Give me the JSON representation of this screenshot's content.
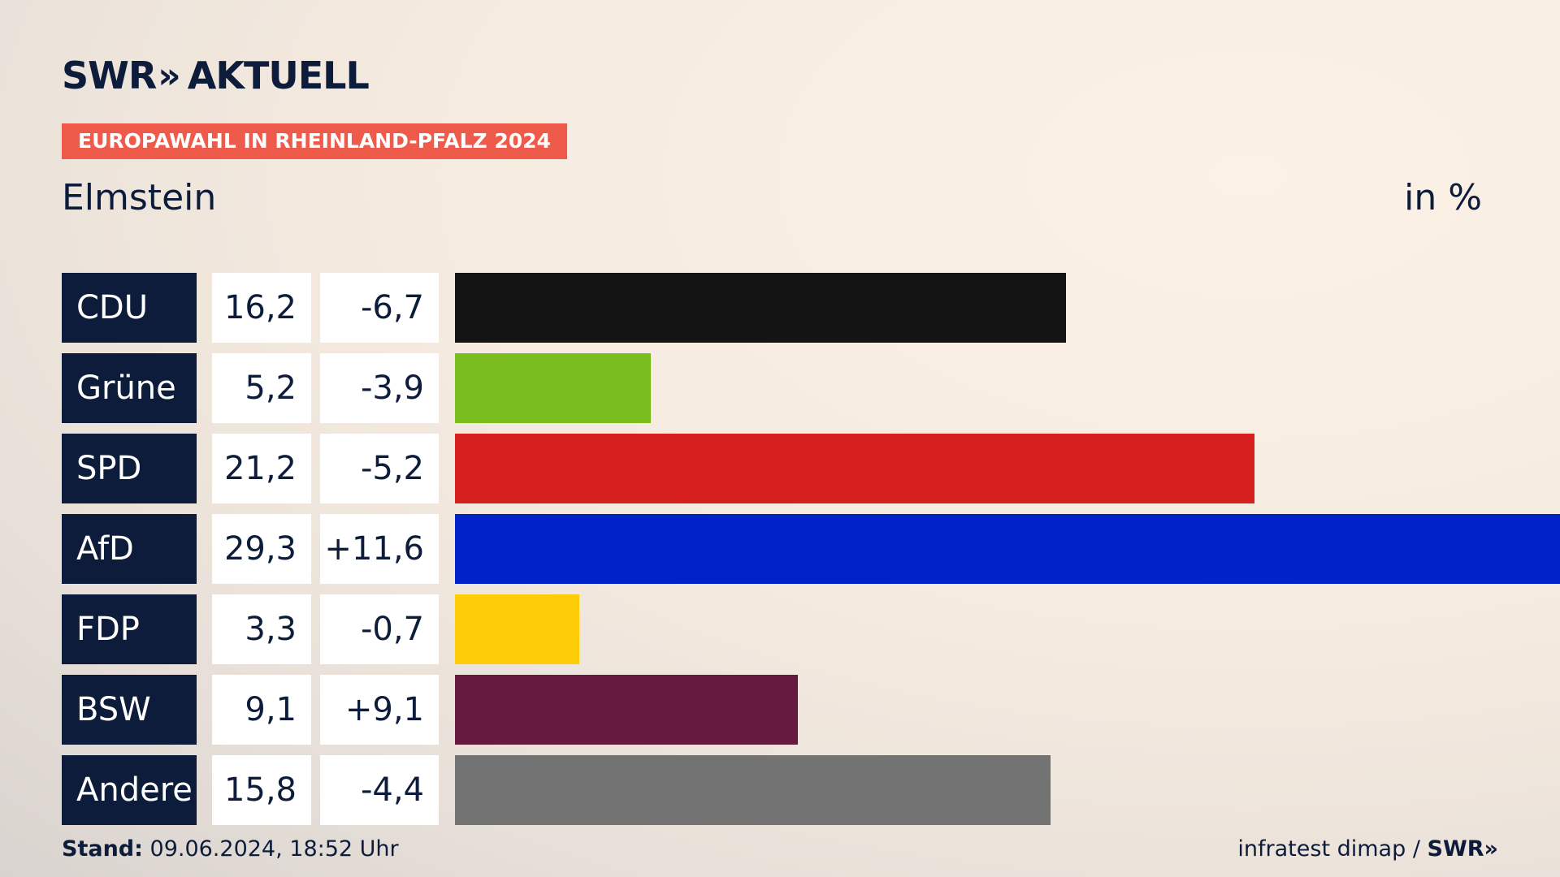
{
  "header": {
    "logo_text": "SWR",
    "logo_chevrons": "»",
    "logo_suffix": "AKTUELL",
    "badge": "EUROPAWAHL IN RHEINLAND-PFALZ 2024",
    "subtitle": "Elmstein",
    "unit": "in %"
  },
  "chart_data": {
    "type": "bar",
    "orientation": "horizontal",
    "categories": [
      "CDU",
      "Grüne",
      "SPD",
      "AfD",
      "FDP",
      "BSW",
      "Andere"
    ],
    "values": [
      16.2,
      5.2,
      21.2,
      29.3,
      3.3,
      9.1,
      15.8
    ],
    "values_label": [
      "16,2",
      "5,2",
      "21,2",
      "29,3",
      "3,3",
      "9,1",
      "15,8"
    ],
    "changes_label": [
      "-6,7",
      "-3,9",
      "-5,2",
      "+11,6",
      "-0,7",
      "+9,1",
      "-4,4"
    ],
    "colors": [
      "#141414",
      "#7abd1f",
      "#d62020",
      "#0022c8",
      "#ffcc0a",
      "#661a3f",
      "#737373"
    ],
    "xlim": [
      0,
      29.3
    ]
  },
  "footer": {
    "stand_label": "Stand:",
    "stand_value": "09.06.2024, 18:52 Uhr",
    "source": "infratest dimap /",
    "source_brand": "SWR»"
  }
}
